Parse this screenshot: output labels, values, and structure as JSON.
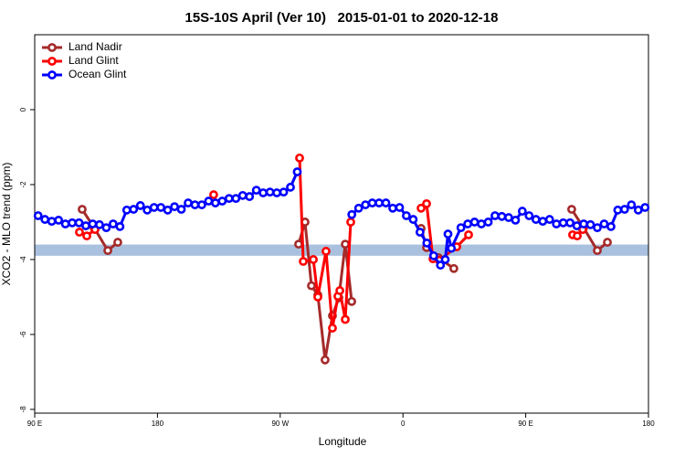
{
  "chart_data": {
    "type": "line",
    "title": "15S-10S April (Ver 10)   2015-01-01 to 2020-12-18",
    "xlabel": "Longitude",
    "ylabel": "XCO2 - MLO trend (ppm)",
    "xlim": [
      90,
      540
    ],
    "ylim": [
      -8.1,
      2
    ],
    "xticks": [
      {
        "value": 90,
        "label": "90 E"
      },
      180,
      {
        "value": 270,
        "label": "90 W"
      },
      {
        "value": 360,
        "label": "0"
      },
      {
        "value": 450,
        "label": "90 E"
      },
      {
        "value": 540,
        "label": "180"
      }
    ],
    "yticks": [
      0,
      -2,
      -4,
      -6,
      -8
    ],
    "legend": "top-left",
    "band": {
      "range": [
        -3.9,
        -3.6
      ],
      "color": "#a9c1de"
    },
    "series": [
      {
        "name": "Land Nadir",
        "color": "#a52a2a",
        "x": [
          124.8,
          133.5,
          143.6,
          150.9,
          200,
          283.5,
          288.2,
          292.9,
          297.6,
          302.9,
          308.3,
          313,
          317.7,
          322.4,
          350,
          373.3,
          377.3,
          386,
          397.3,
          450,
          483.7,
          492.4,
          502.5,
          509.9
        ],
        "values": [
          -2.66,
          -3.15,
          -3.76,
          -3.54,
          null,
          -3.59,
          -3.0,
          -4.7,
          -4.95,
          -6.68,
          -5.5,
          -5.02,
          -3.59,
          -5.12,
          null,
          -3.17,
          -3.68,
          -3.95,
          -4.24,
          null,
          -2.66,
          -3.15,
          -3.76,
          -3.54
        ]
      },
      {
        "name": "Land Glint",
        "color": "#ff0000",
        "x": [
          122.8,
          128.2,
          134.2,
          180,
          221.2,
          250,
          284.2,
          286.9,
          294.3,
          297.6,
          303.6,
          308.3,
          312.3,
          313.7,
          317.7,
          321.7,
          350,
          373.3,
          377.3,
          382,
          386.6,
          399.4,
          408.1,
          450,
          484.4,
          487.8,
          491.8
        ],
        "values": [
          -3.27,
          -3.37,
          -3.2,
          null,
          -2.27,
          null,
          -1.29,
          -4.05,
          -4.0,
          -5.0,
          -3.78,
          -5.83,
          -4.98,
          -4.83,
          -5.6,
          -3.0,
          null,
          -2.63,
          -2.51,
          -3.98,
          -4.02,
          -3.66,
          -3.34,
          null,
          -3.34,
          -3.37,
          -3.2
        ]
      },
      {
        "name": "Ocean Glint",
        "color": "#0000ff",
        "x": [
          92.5,
          97.5,
          102.5,
          107.5,
          112.5,
          117.5,
          122.5,
          127.5,
          132.5,
          137.5,
          142.5,
          147.5,
          152.5,
          157.5,
          162.5,
          167.5,
          172.5,
          177.5,
          182.5,
          187.5,
          192.5,
          197.5,
          202.5,
          207.5,
          212.5,
          217.5,
          222.5,
          227.5,
          232.5,
          237.5,
          242.5,
          247.5,
          252.5,
          257.5,
          262.5,
          267.5,
          272.5,
          277.5,
          282.5,
          300,
          322.5,
          327.5,
          332.5,
          337.5,
          342.5,
          347.5,
          352.5,
          357.5,
          362.5,
          367.5,
          372.5,
          377.5,
          382.5,
          387.5,
          391,
          393,
          395.5,
          402.5,
          407.5,
          412.5,
          417.5,
          422.5,
          427.5,
          432.5,
          437.5,
          442.5,
          447.5,
          452.5,
          457.5,
          462.5,
          467.5,
          472.5,
          477.5,
          482.5,
          487.5,
          492.5,
          497.5,
          502.5,
          507.5,
          512.5,
          517.5,
          522.5,
          527.5,
          532.5,
          537.5
        ],
        "values": [
          -2.83,
          -2.93,
          -2.98,
          -2.95,
          -3.05,
          -3.02,
          -3.02,
          -3.1,
          -3.05,
          -3.07,
          -3.15,
          -3.05,
          -3.12,
          -2.68,
          -2.66,
          -2.56,
          -2.68,
          -2.61,
          -2.61,
          -2.68,
          -2.59,
          -2.66,
          -2.49,
          -2.54,
          -2.54,
          -2.44,
          -2.49,
          -2.44,
          -2.37,
          -2.37,
          -2.29,
          -2.32,
          -2.15,
          -2.22,
          -2.2,
          -2.22,
          -2.2,
          -2.07,
          -1.66,
          null,
          -2.8,
          -2.63,
          -2.54,
          -2.49,
          -2.49,
          -2.49,
          -2.63,
          -2.61,
          -2.83,
          -2.93,
          -3.27,
          -3.56,
          -3.9,
          -4.15,
          -4.0,
          -3.32,
          -3.7,
          -3.15,
          -3.05,
          -3.0,
          -3.05,
          -3.0,
          -2.83,
          -2.85,
          -2.88,
          -2.95,
          -2.71,
          -2.83,
          -2.93,
          -2.98,
          -2.93,
          -3.05,
          -3.02,
          -3.02,
          -3.1,
          -3.05,
          -3.07,
          -3.15,
          -3.05,
          -3.12,
          -2.68,
          -2.66,
          -2.54,
          -2.68,
          -2.61
        ]
      }
    ]
  }
}
